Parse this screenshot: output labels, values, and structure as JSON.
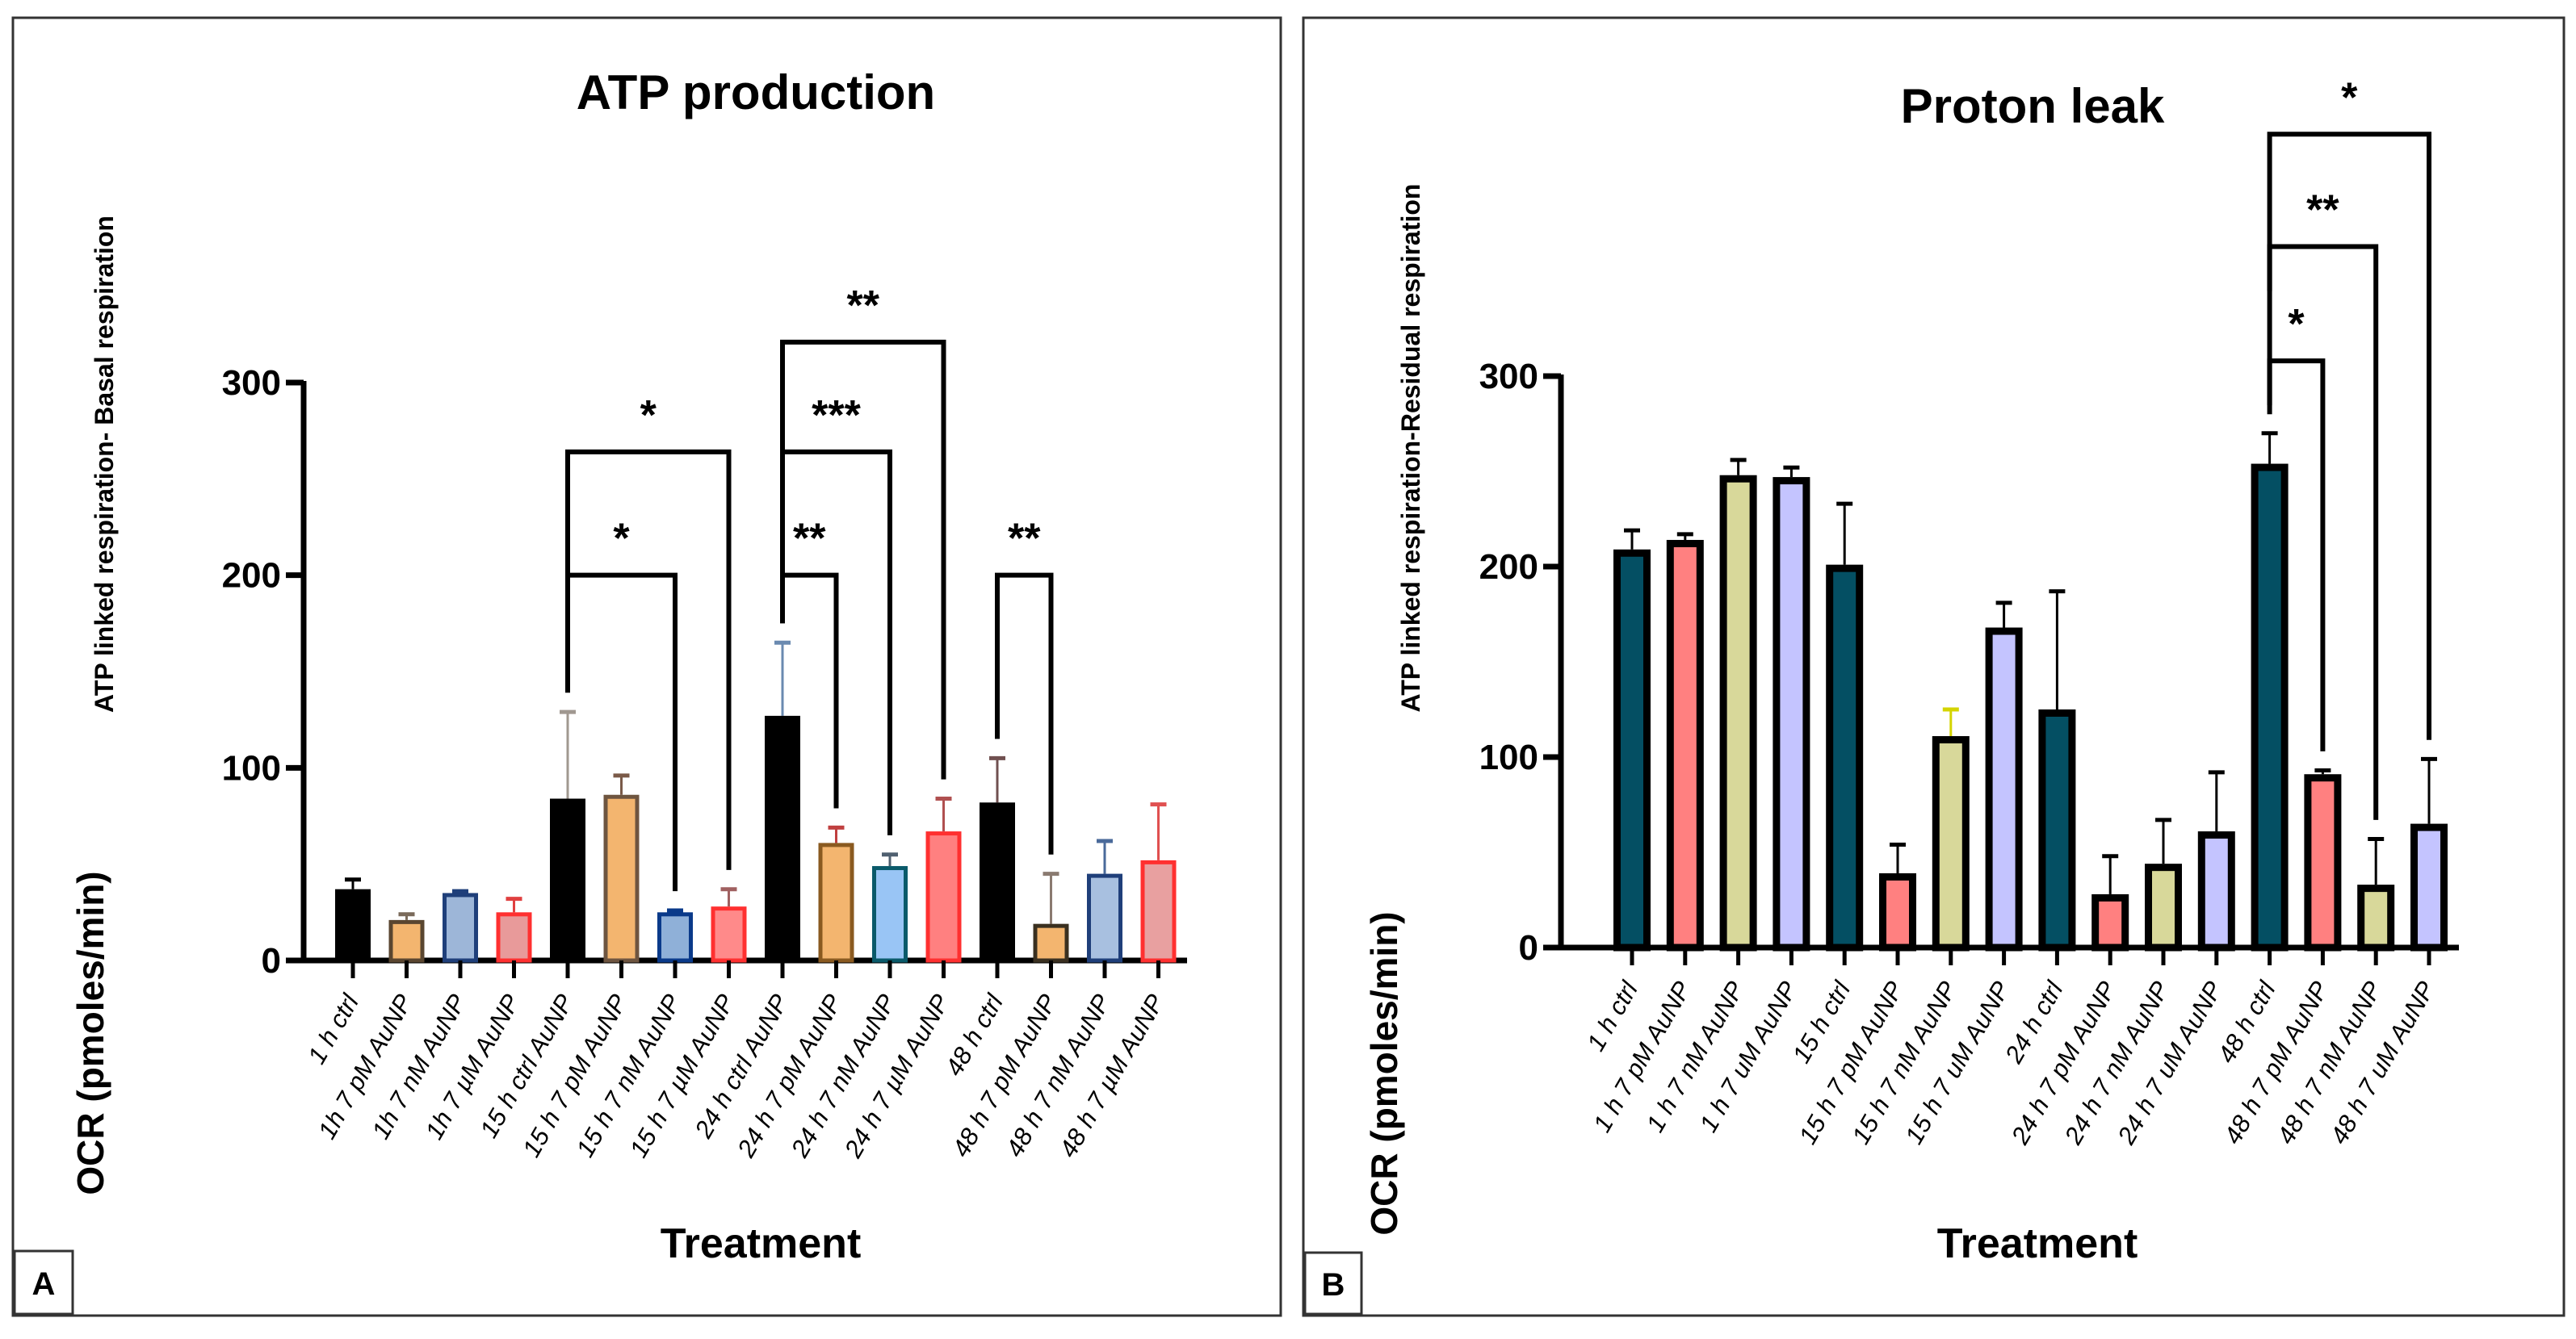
{
  "chart_data": [
    {
      "type": "bar",
      "panel_label": "A",
      "title": "ATP production",
      "xlabel": "Treatment",
      "ylabel": "OCR (pmoles/min)",
      "ylabel_secondary": "ATP linked respiration- Basal respiration",
      "ylim": [
        0,
        300
      ],
      "yticks": [
        "0",
        "100",
        "200",
        "300"
      ],
      "categories": [
        "1 h ctrl",
        "1h 7 pM AuNP",
        "1h 7 nM AuNP",
        "1h 7 µM AuNP",
        "15 h ctrl AuNP",
        "15 h 7 pM AuNP",
        "15 h 7 nM AuNP",
        "15 h 7 µM AuNP",
        "24 h ctrl AuNP",
        "24 h 7 pM AuNP",
        "24 h 7 nM AuNP",
        "24 h 7 µM AuNP",
        "48 h ctrl",
        "48 h 7 pM AuNP",
        "48 h 7 nM AuNP",
        "48 h 7 µM AuNP"
      ],
      "values": [
        37,
        21,
        35,
        25,
        84,
        86,
        25,
        28,
        127,
        61,
        49,
        67,
        82,
        19,
        45,
        52
      ],
      "error_upper": [
        42,
        24,
        36,
        32,
        129,
        96,
        26,
        37,
        165,
        69,
        55,
        84,
        105,
        45,
        62,
        81
      ],
      "fill_colors": [
        "#000000",
        "#f3b56f",
        "#9db6d8",
        "#e89a9a",
        "#000000",
        "#f3b56f",
        "#8fb0d8",
        "#ff8a8a",
        "#000000",
        "#f3b56f",
        "#99c5f5",
        "#ff8080",
        "#000000",
        "#f3b56f",
        "#a8c0e0",
        "#e8a0a0"
      ],
      "stroke_colors": [
        "#000000",
        "#5a4630",
        "#1f3f7a",
        "#ff3030",
        "#000000",
        "#6e5540",
        "#0a3a8a",
        "#ff3030",
        "#000000",
        "#8a5a20",
        "#0a5a6a",
        "#ff3030",
        "#000000",
        "#3a3020",
        "#1f3f7a",
        "#ff3030"
      ],
      "error_colors": [
        "#000000",
        "#7a6a5a",
        "#1f3f7a",
        "#e04040",
        "#a09890",
        "#7a5a48",
        "#0a3a8a",
        "#a06060",
        "#6a8ab0",
        "#c04040",
        "#506070",
        "#b05050",
        "#705050",
        "#8a7a70",
        "#4a6a9a",
        "#e05050"
      ],
      "significance": [
        {
          "from": 5,
          "to": 7,
          "label": "*",
          "y": 200
        },
        {
          "from": 5,
          "to": 8,
          "label": "*",
          "y": 264
        },
        {
          "from": 9,
          "to": 10,
          "label": "**",
          "y": 200
        },
        {
          "from": 9,
          "to": 11,
          "label": "***",
          "y": 264
        },
        {
          "from": 9,
          "to": 12,
          "label": "**",
          "y": 321
        },
        {
          "from": 13,
          "to": 14,
          "label": "**",
          "y": 200
        }
      ]
    },
    {
      "type": "bar",
      "panel_label": "B",
      "title": "Proton leak",
      "xlabel": "Treatment",
      "ylabel": "OCR (pmoles/min)",
      "ylabel_secondary": "ATP linked respiration-Residual respiration",
      "ylim": [
        0,
        300
      ],
      "yticks": [
        "0",
        "100",
        "200",
        "300"
      ],
      "categories": [
        "1 h ctrl",
        "1 h 7 pM AuNP",
        "1 h 7 nM AuNP",
        "1 h 7 uM AuNP",
        "15 h ctrl",
        "15 h 7 pM AuNP",
        "15 h 7 nM AuNP",
        "15 h 7 uM AuNP",
        "24 h ctrl",
        "24 h 7 pM AuNP",
        "24 h 7 nM AuNP",
        "24 h 7 uM AuNP",
        "48 h ctrl",
        "48 h 7 pM AuNP",
        "48 h 7 nM AuNP",
        "48 h 7 uM AuNP"
      ],
      "values": [
        209,
        214,
        248,
        247,
        201,
        39,
        111,
        168,
        125,
        28,
        44,
        61,
        254,
        91,
        33,
        65
      ],
      "error_upper": [
        219,
        217,
        256,
        252,
        233,
        54,
        125,
        181,
        187,
        48,
        67,
        92,
        270,
        93,
        57,
        99
      ],
      "fill_colors": [
        "#044f63",
        "#ff8080",
        "#d8d89a",
        "#c4c4ff",
        "#044f63",
        "#ff8080",
        "#d8d89a",
        "#c4c4ff",
        "#044f63",
        "#ff8080",
        "#d8d89a",
        "#c4c4ff",
        "#044f63",
        "#ff8080",
        "#d8d89a",
        "#c4c4ff"
      ],
      "stroke_colors": [
        "#000000",
        "#000000",
        "#000000",
        "#000000",
        "#000000",
        "#000000",
        "#000000",
        "#000000",
        "#000000",
        "#000000",
        "#000000",
        "#000000",
        "#000000",
        "#000000",
        "#000000",
        "#000000"
      ],
      "error_colors": [
        "#000000",
        "#000000",
        "#000000",
        "#000000",
        "#000000",
        "#000000",
        "#d4d400",
        "#000000",
        "#000000",
        "#000000",
        "#000000",
        "#000000",
        "#000000",
        "#000000",
        "#000000",
        "#000000"
      ],
      "significance": [
        {
          "from": 13,
          "to": 14,
          "label": "*",
          "y": 308
        },
        {
          "from": 13,
          "to": 15,
          "label": "**",
          "y": 368
        },
        {
          "from": 13,
          "to": 16,
          "label": "*",
          "y": 427
        }
      ]
    }
  ]
}
